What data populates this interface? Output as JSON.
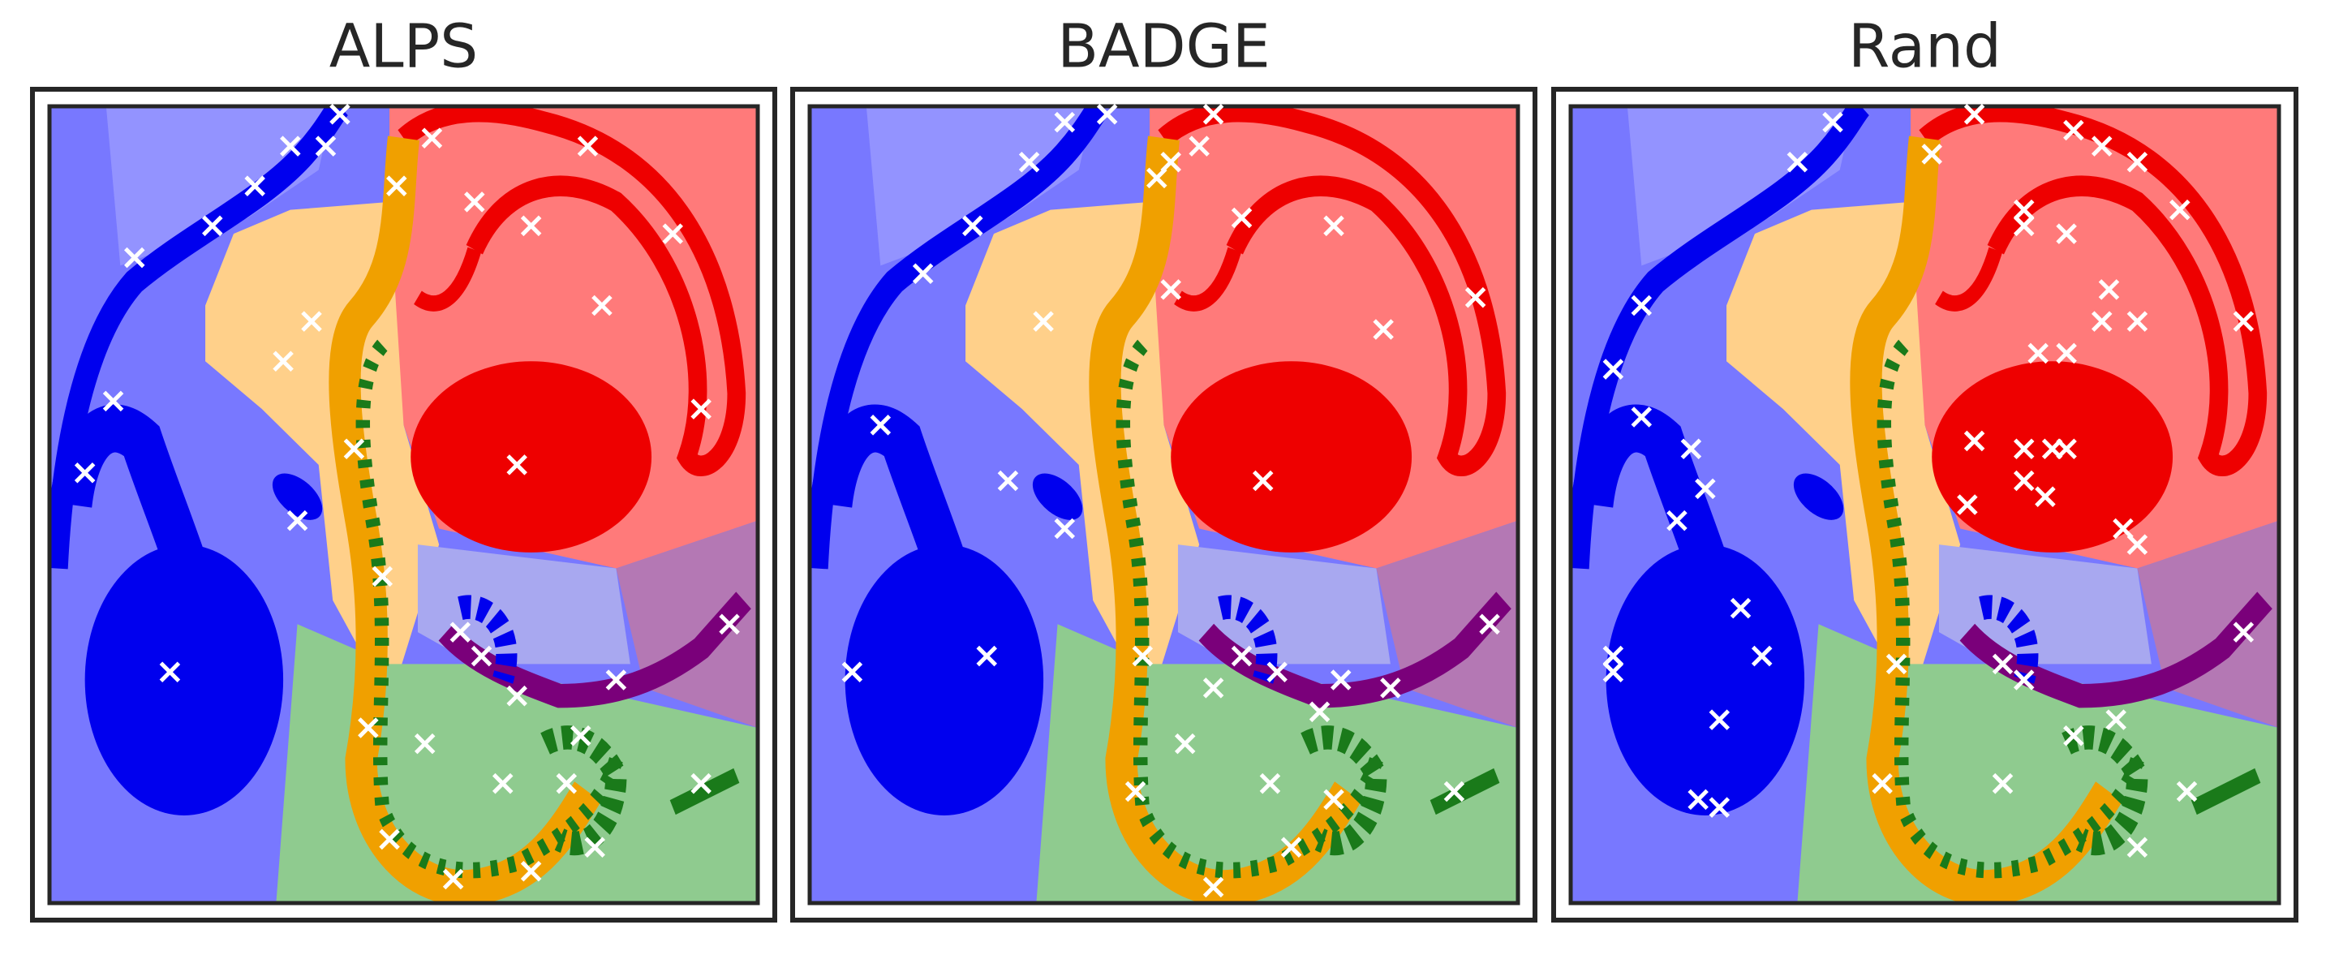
{
  "chart_data": [
    {
      "type": "scatter",
      "title": "ALPS",
      "xlim": [
        0,
        100
      ],
      "ylim": [
        0,
        100
      ],
      "series": [
        {
          "color": "#ffffff",
          "x": [
            12,
            23,
            29,
            34,
            39,
            41,
            54,
            49,
            60,
            68,
            76,
            88,
            78,
            92,
            66,
            37,
            33,
            9,
            5,
            35,
            17,
            43,
            47,
            58,
            61,
            66,
            80,
            96,
            45,
            53,
            75,
            64,
            73,
            92,
            77,
            68,
            57,
            48
          ],
          "values": [
            81,
            85,
            90,
            95,
            95,
            99,
            96,
            90,
            88,
            85,
            95,
            84,
            75,
            62,
            55,
            73,
            68,
            63,
            54,
            48,
            29,
            57,
            41,
            34,
            31,
            26,
            28,
            35,
            22,
            20,
            21,
            15,
            15,
            15,
            7,
            4,
            3,
            8
          ]
        }
      ]
    },
    {
      "type": "scatter",
      "title": "BADGE",
      "xlim": [
        0,
        100
      ],
      "ylim": [
        0,
        100
      ],
      "series": [
        {
          "color": "#ffffff",
          "x": [
            16,
            23,
            31,
            36,
            42,
            51,
            49,
            55,
            57,
            61,
            74,
            94,
            81,
            51,
            33,
            10,
            28,
            36,
            64,
            25,
            6,
            47,
            61,
            66,
            57,
            75,
            82,
            96,
            72,
            53,
            46,
            65,
            74,
            91,
            68,
            57
          ],
          "values": [
            79,
            85,
            93,
            98,
            99,
            93,
            91,
            95,
            99,
            86,
            85,
            76,
            72,
            77,
            73,
            60,
            53,
            47,
            53,
            31,
            29,
            31,
            31,
            29,
            27,
            28,
            27,
            35,
            24,
            20,
            14,
            15,
            13,
            14,
            7,
            2
          ]
        }
      ]
    },
    {
      "type": "scatter",
      "title": "Rand",
      "xlim": [
        0,
        100
      ],
      "ylim": [
        0,
        100
      ],
      "series": [
        {
          "color": "#ffffff",
          "x": [
            32,
            37,
            51,
            57,
            71,
            75,
            80,
            86,
            64,
            64,
            70,
            76,
            75,
            80,
            95,
            66,
            70,
            10,
            6,
            10,
            17,
            19,
            15,
            57,
            64,
            68,
            70,
            64,
            67,
            56,
            78,
            80,
            24,
            6,
            6,
            27,
            21,
            61,
            64,
            46,
            71,
            77,
            95,
            44,
            18,
            21,
            61,
            87,
            80
          ],
          "values": [
            93,
            98,
            94,
            99,
            97,
            95,
            93,
            87,
            87,
            85,
            84,
            77,
            73,
            73,
            73,
            69,
            69,
            75,
            67,
            61,
            57,
            52,
            48,
            58,
            57,
            57,
            57,
            53,
            51,
            50,
            47,
            45,
            37,
            31,
            29,
            31,
            23,
            30,
            28,
            30,
            21,
            23,
            34,
            15,
            13,
            12,
            15,
            14,
            7
          ]
        }
      ]
    }
  ]
}
